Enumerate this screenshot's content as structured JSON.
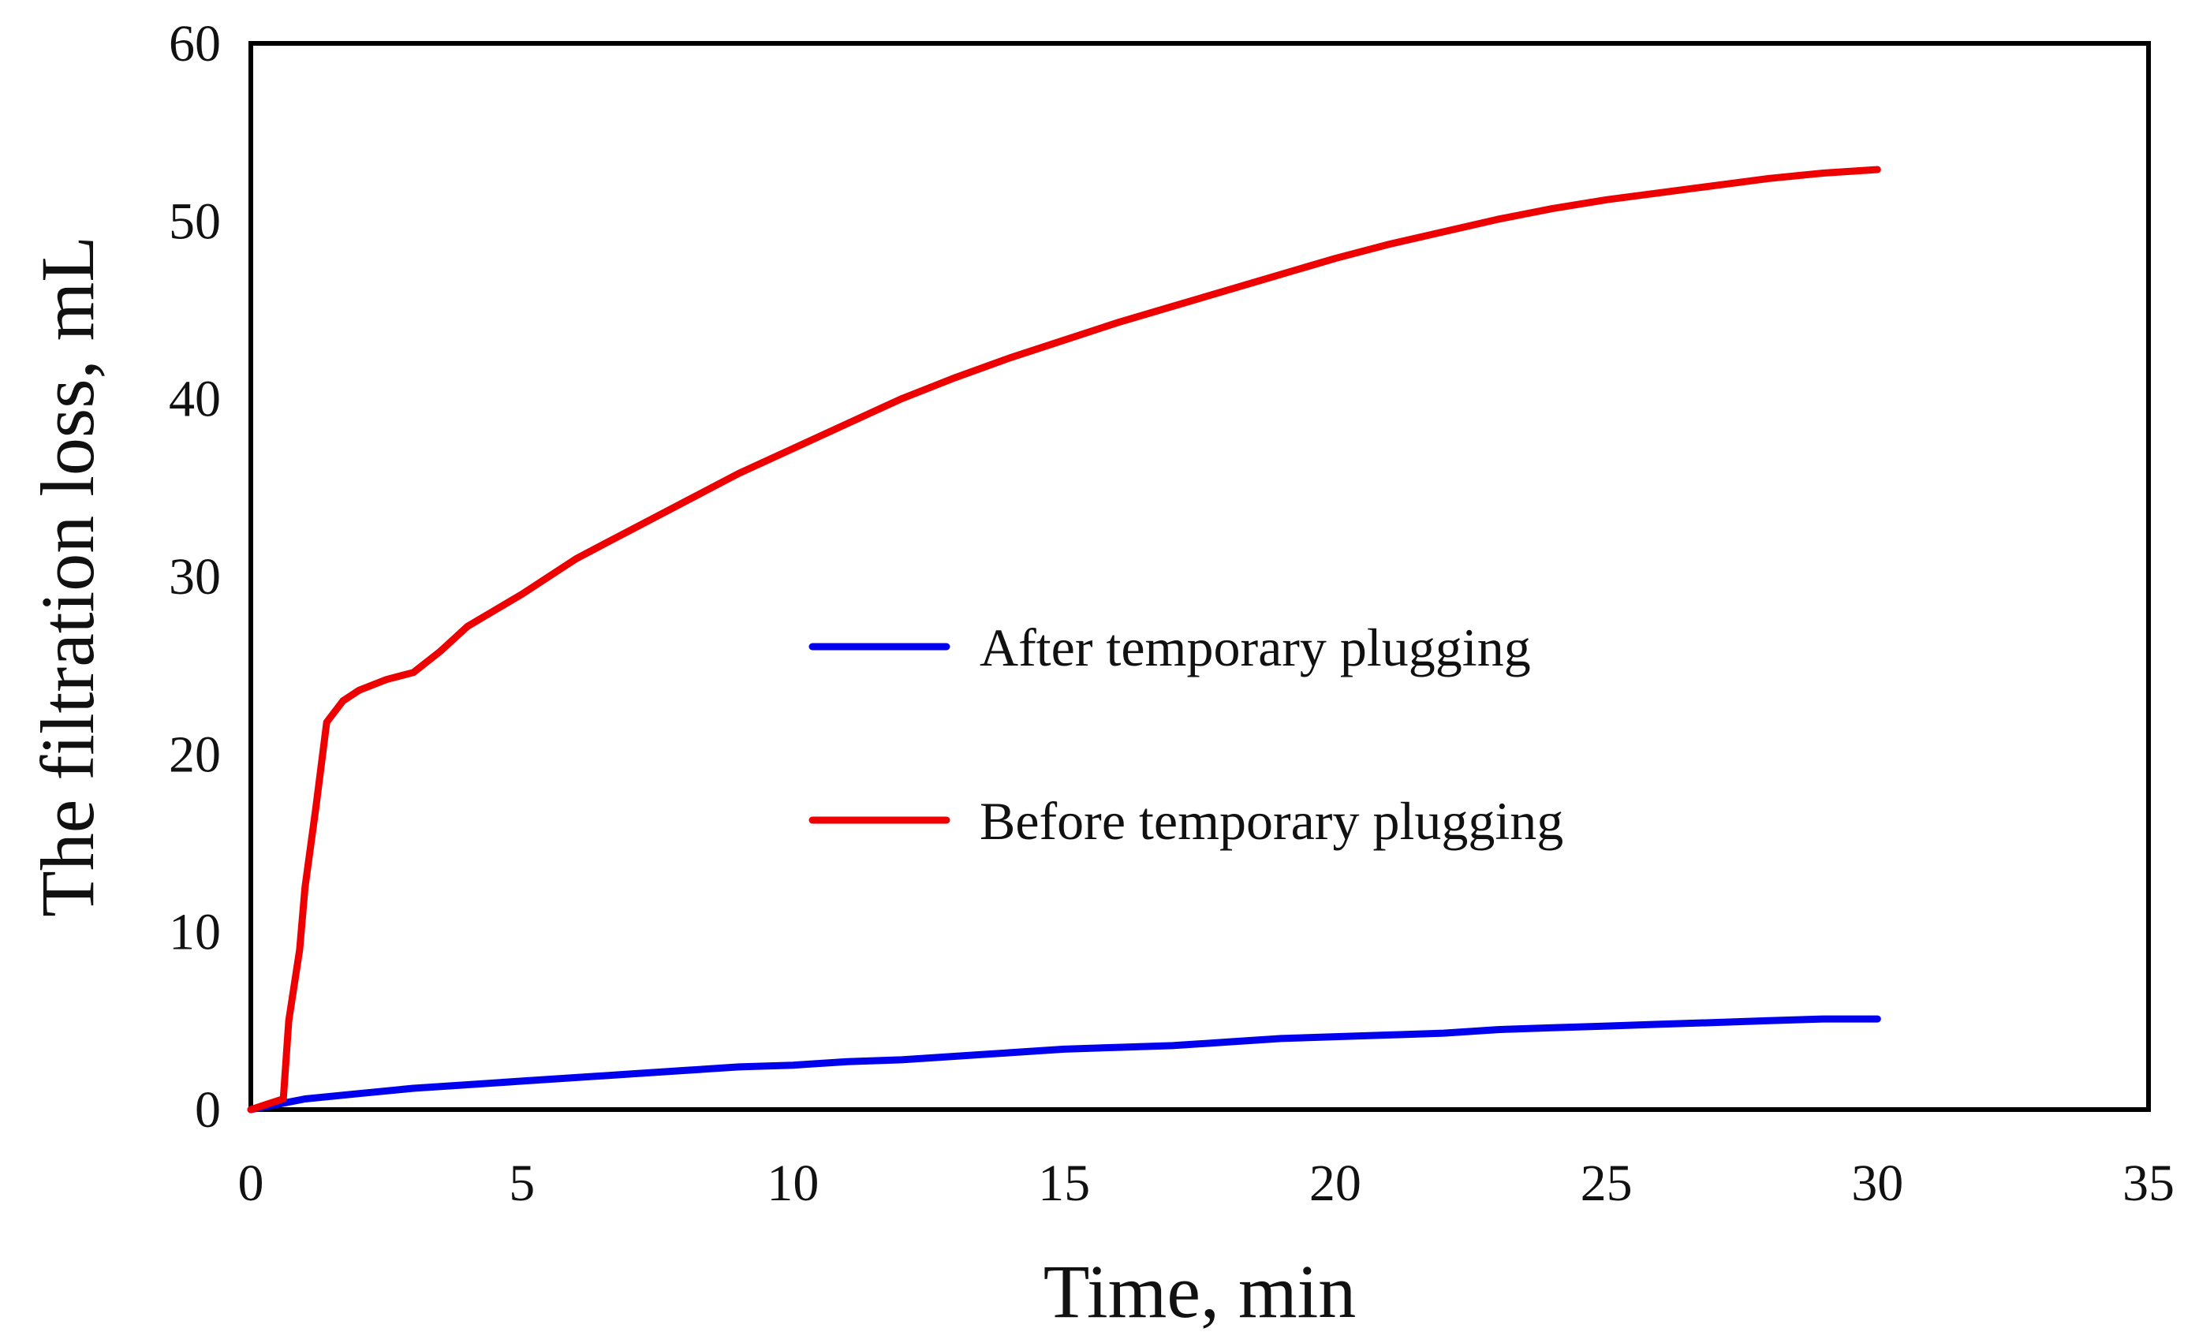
{
  "chart_data": {
    "type": "line",
    "title": "",
    "xlabel": "Time,  min",
    "ylabel": "The filtration loss,  mL",
    "xlim": [
      0,
      35
    ],
    "ylim": [
      0,
      60
    ],
    "xticks": [
      0,
      5,
      10,
      15,
      20,
      25,
      30,
      35
    ],
    "yticks": [
      0,
      10,
      20,
      30,
      40,
      50,
      60
    ],
    "grid": false,
    "legend": "center",
    "series": [
      {
        "name": "After temporary plugging",
        "color": "#0000ee",
        "x": [
          0,
          0.5,
          1,
          2,
          3,
          4,
          5,
          6,
          7,
          8,
          9,
          10,
          11,
          12,
          13,
          14,
          15,
          16,
          17,
          18,
          19,
          20,
          21,
          22,
          23,
          24,
          25,
          26,
          27,
          28,
          29,
          30
        ],
        "y": [
          0,
          0.3,
          0.6,
          0.9,
          1.2,
          1.4,
          1.6,
          1.8,
          2.0,
          2.2,
          2.4,
          2.5,
          2.7,
          2.8,
          3.0,
          3.2,
          3.4,
          3.5,
          3.6,
          3.8,
          4.0,
          4.1,
          4.2,
          4.3,
          4.5,
          4.6,
          4.7,
          4.8,
          4.9,
          5.0,
          5.1,
          5.1
        ]
      },
      {
        "name": "Before temporary plugging",
        "color": "#ee0000",
        "x": [
          0,
          0.3,
          0.6,
          0.7,
          0.9,
          1.0,
          1.2,
          1.4,
          1.7,
          2.0,
          2.5,
          3.0,
          3.5,
          4.0,
          5.0,
          6.0,
          6.5,
          7.0,
          8.0,
          9.0,
          10.0,
          11.0,
          12.0,
          13.0,
          14.0,
          15.0,
          16.0,
          17.0,
          18.0,
          19.0,
          20.0,
          21.0,
          22.0,
          23.0,
          24.0,
          25.0,
          26.0,
          27.0,
          28.0,
          29.0,
          30.0
        ],
        "y": [
          0,
          0.3,
          0.6,
          5.0,
          9.0,
          12.5,
          17.0,
          21.8,
          23.0,
          23.6,
          24.2,
          24.6,
          25.8,
          27.2,
          29.0,
          31.0,
          31.8,
          32.6,
          34.2,
          35.8,
          37.2,
          38.6,
          40.0,
          41.2,
          42.3,
          43.3,
          44.3,
          45.2,
          46.1,
          47.0,
          47.9,
          48.7,
          49.4,
          50.1,
          50.7,
          51.2,
          51.6,
          52.0,
          52.4,
          52.7,
          52.9
        ]
      }
    ]
  }
}
